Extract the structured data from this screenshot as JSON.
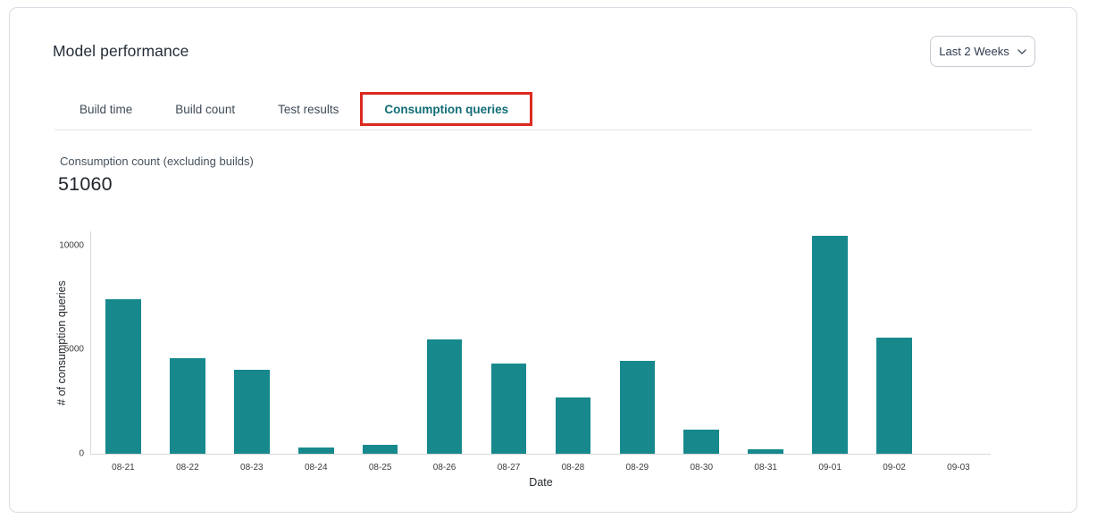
{
  "page": {
    "title": "Model performance"
  },
  "header": {
    "time_range_selector": {
      "value": "Last 2 Weeks"
    }
  },
  "tabs": [
    {
      "label": "Build time",
      "active": false
    },
    {
      "label": "Build count",
      "active": false
    },
    {
      "label": "Test results",
      "active": false
    },
    {
      "label": "Consumption queries",
      "active": true,
      "annotated": true
    }
  ],
  "metric": {
    "label": "Consumption count (excluding builds)",
    "value": "51060"
  },
  "chart_data": {
    "type": "bar",
    "title": "",
    "xlabel": "Date",
    "ylabel": "# of consumption queries",
    "categories": [
      "08-21",
      "08-22",
      "08-23",
      "08-24",
      "08-25",
      "08-26",
      "08-27",
      "08-28",
      "08-29",
      "08-30",
      "08-31",
      "09-01",
      "09-02",
      "09-03"
    ],
    "values": [
      7420,
      4570,
      4040,
      300,
      430,
      5470,
      4340,
      2690,
      4440,
      1140,
      200,
      10460,
      5560,
      0
    ],
    "yticks": [
      0,
      5000,
      10000
    ],
    "ylim": [
      0,
      10700
    ],
    "grid": false,
    "legend": false,
    "bar_color": "#17898d"
  },
  "colors": {
    "accent_teal": "#116d76",
    "bar_teal": "#17898d",
    "annotation_red": "#dc2a1f",
    "card_border": "#d9dce2",
    "axis_line": "#d9d9d9"
  }
}
